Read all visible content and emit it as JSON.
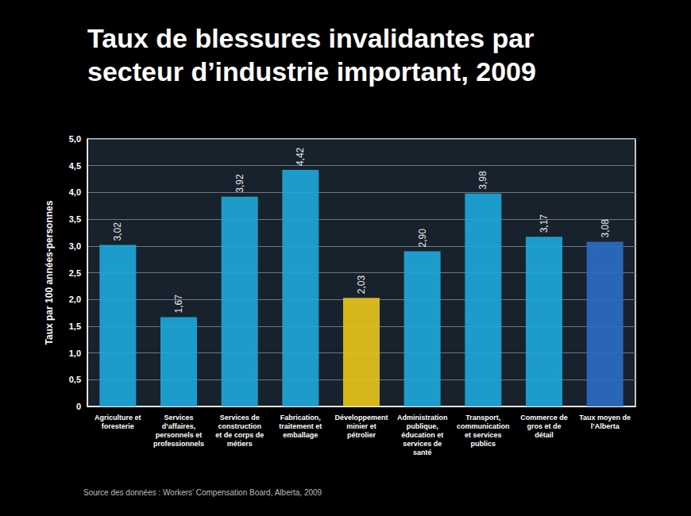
{
  "chart_data": {
    "type": "bar",
    "title": "Taux de blessures invalidantes par secteur d’industrie important, 2009",
    "y_label": "Taux par 100 années-personnes",
    "source": "Source des données : Workers’ Compensation Board, Alberta, 2009",
    "categories": [
      "Agriculture et foresterie",
      "Services d’affaires, personnels et professionnels",
      "Services de construction et de corps de métiers",
      "Fabrication, traitement et emballage",
      "Développement minier et pétrolier",
      "Administration publique, éducation et services de santé",
      "Transport, communication et services publics",
      "Commerce de gros et de détail",
      "Taux moyen de l’Alberta"
    ],
    "values": [
      3.02,
      1.67,
      3.92,
      4.42,
      2.03,
      2.9,
      3.98,
      3.17,
      3.08
    ],
    "value_labels": [
      "3,02",
      "1,67",
      "3,92",
      "4,42",
      "2,03",
      "2,90",
      "3,98",
      "3,17",
      "3,08"
    ],
    "colors": [
      "#1ea6d8",
      "#1ea6d8",
      "#1ea6d8",
      "#1ea6d8",
      "#e6c41c",
      "#1ea6d8",
      "#1ea6d8",
      "#1ea6d8",
      "#2b6cc4"
    ],
    "ylim": [
      0,
      5
    ],
    "yticks": [
      0,
      {
        "value": 0.5,
        "label": "0,5"
      },
      {
        "value": 1,
        "label": "1,0"
      },
      {
        "value": 1.5,
        "label": "1,5"
      },
      {
        "value": 2,
        "label": "2,0"
      },
      {
        "value": 2.5,
        "label": "2,5"
      },
      {
        "value": 3,
        "label": "3,0"
      },
      {
        "value": 3.5,
        "label": "3,5"
      },
      {
        "value": 4,
        "label": "4,0"
      },
      {
        "value": 4.5,
        "label": "4,5"
      },
      {
        "value": 5,
        "label": "5,0"
      }
    ],
    "grid": true,
    "data_labels": true
  }
}
